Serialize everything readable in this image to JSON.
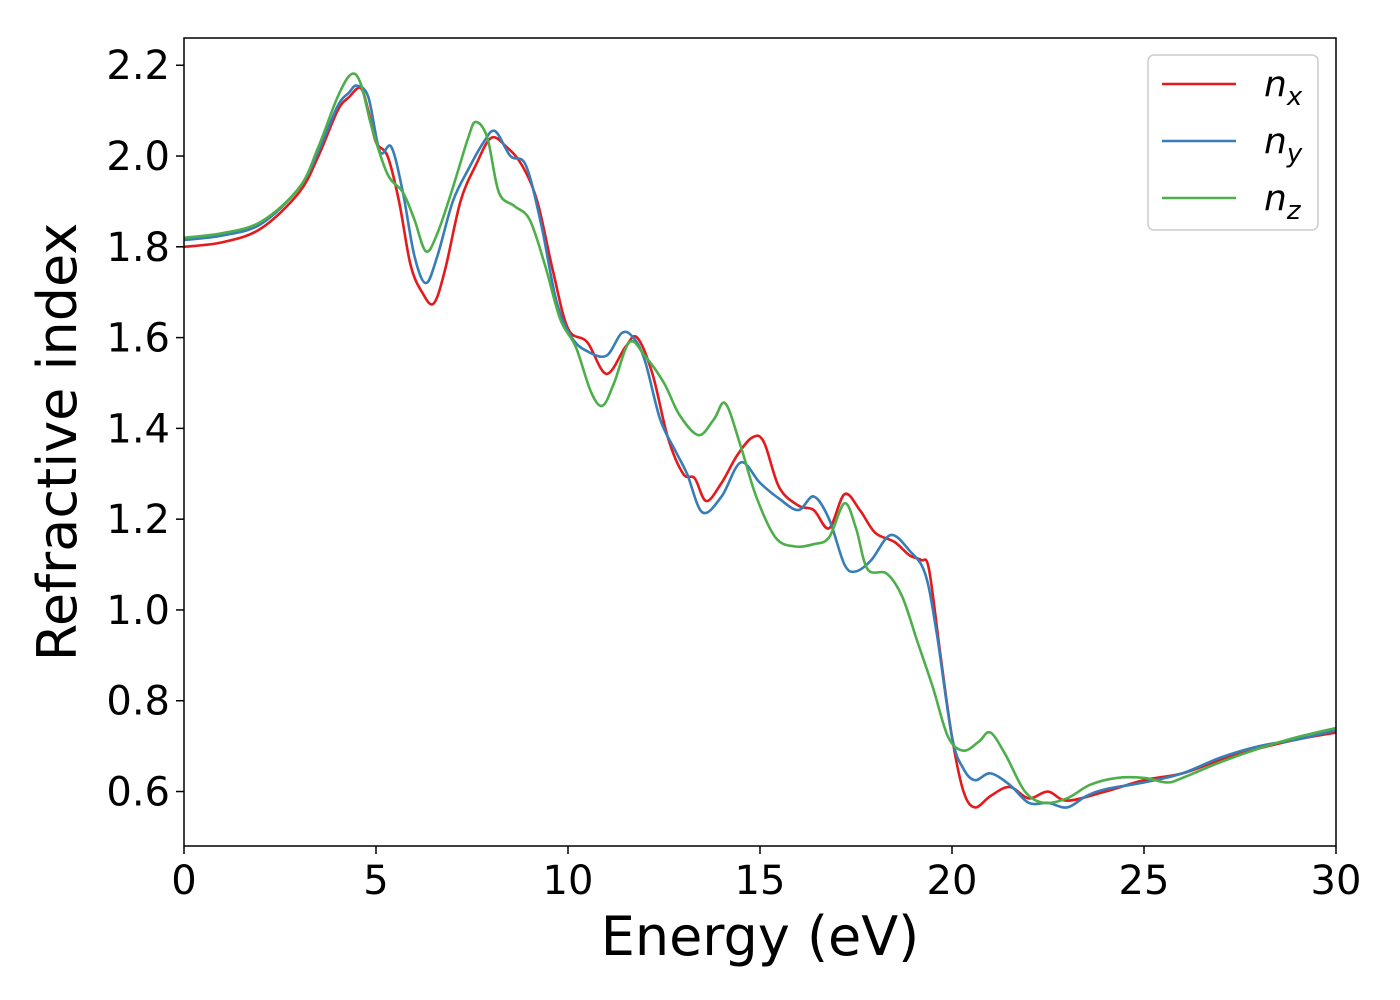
{
  "chart_data": {
    "type": "line",
    "title": "",
    "xlabel": "Energy (eV)",
    "ylabel": "Refractive index",
    "xlim": [
      0,
      30
    ],
    "ylim": [
      0.48,
      2.26
    ],
    "xticks": [
      0,
      5,
      10,
      15,
      20,
      25,
      30
    ],
    "xtick_labels": [
      "0",
      "5",
      "10",
      "15",
      "20",
      "25",
      "30"
    ],
    "yticks": [
      0.6,
      0.8,
      1.0,
      1.2,
      1.4,
      1.6,
      1.8,
      2.0,
      2.2
    ],
    "ytick_labels": [
      "0.6",
      "0.8",
      "1.0",
      "1.2",
      "1.4",
      "1.6",
      "1.8",
      "2.0",
      "2.2"
    ],
    "grid": false,
    "legend": "top-right",
    "series": [
      {
        "name": "n",
        "subscript": "x",
        "color": "#e41a1c",
        "points": [
          [
            0,
            1.8
          ],
          [
            1,
            1.81
          ],
          [
            2,
            1.84
          ],
          [
            3,
            1.92
          ],
          [
            3.5,
            2.0
          ],
          [
            4,
            2.1
          ],
          [
            4.3,
            2.13
          ],
          [
            4.6,
            2.15
          ],
          [
            4.8,
            2.1
          ],
          [
            5.0,
            2.03
          ],
          [
            5.3,
            2.0
          ],
          [
            5.6,
            1.9
          ],
          [
            5.9,
            1.76
          ],
          [
            6.2,
            1.7
          ],
          [
            6.5,
            1.675
          ],
          [
            6.8,
            1.75
          ],
          [
            7.2,
            1.9
          ],
          [
            7.6,
            1.98
          ],
          [
            8.0,
            2.04
          ],
          [
            8.4,
            2.02
          ],
          [
            8.8,
            1.98
          ],
          [
            9.2,
            1.9
          ],
          [
            9.6,
            1.75
          ],
          [
            10.0,
            1.62
          ],
          [
            10.5,
            1.59
          ],
          [
            11.0,
            1.52
          ],
          [
            11.5,
            1.58
          ],
          [
            11.8,
            1.6
          ],
          [
            12.2,
            1.52
          ],
          [
            12.6,
            1.38
          ],
          [
            13.0,
            1.3
          ],
          [
            13.3,
            1.29
          ],
          [
            13.6,
            1.24
          ],
          [
            14.0,
            1.28
          ],
          [
            14.4,
            1.34
          ],
          [
            14.8,
            1.38
          ],
          [
            15.1,
            1.37
          ],
          [
            15.5,
            1.27
          ],
          [
            16.0,
            1.23
          ],
          [
            16.4,
            1.22
          ],
          [
            16.8,
            1.18
          ],
          [
            17.2,
            1.255
          ],
          [
            17.6,
            1.22
          ],
          [
            18.0,
            1.17
          ],
          [
            18.5,
            1.15
          ],
          [
            18.9,
            1.12
          ],
          [
            19.2,
            1.11
          ],
          [
            19.4,
            1.09
          ],
          [
            19.7,
            0.9
          ],
          [
            20.0,
            0.72
          ],
          [
            20.3,
            0.6
          ],
          [
            20.6,
            0.565
          ],
          [
            21.0,
            0.59
          ],
          [
            21.5,
            0.61
          ],
          [
            22.0,
            0.585
          ],
          [
            22.5,
            0.6
          ],
          [
            23.0,
            0.58
          ],
          [
            24.0,
            0.6
          ],
          [
            25.0,
            0.625
          ],
          [
            26.0,
            0.64
          ],
          [
            27.0,
            0.67
          ],
          [
            28.0,
            0.695
          ],
          [
            29.0,
            0.715
          ],
          [
            30.0,
            0.73
          ]
        ]
      },
      {
        "name": "n",
        "subscript": "y",
        "color": "#377eb8",
        "points": [
          [
            0,
            1.815
          ],
          [
            1,
            1.825
          ],
          [
            2,
            1.85
          ],
          [
            3,
            1.93
          ],
          [
            3.5,
            2.01
          ],
          [
            4,
            2.11
          ],
          [
            4.3,
            2.14
          ],
          [
            4.5,
            2.155
          ],
          [
            4.8,
            2.13
          ],
          [
            5.1,
            2.01
          ],
          [
            5.4,
            2.02
          ],
          [
            5.7,
            1.92
          ],
          [
            6.0,
            1.78
          ],
          [
            6.3,
            1.72
          ],
          [
            6.6,
            1.78
          ],
          [
            7.0,
            1.9
          ],
          [
            7.4,
            1.97
          ],
          [
            7.8,
            2.03
          ],
          [
            8.1,
            2.055
          ],
          [
            8.5,
            2.0
          ],
          [
            8.9,
            1.98
          ],
          [
            9.3,
            1.85
          ],
          [
            9.7,
            1.68
          ],
          [
            10.1,
            1.6
          ],
          [
            10.5,
            1.57
          ],
          [
            11.0,
            1.56
          ],
          [
            11.4,
            1.61
          ],
          [
            11.7,
            1.6
          ],
          [
            12.0,
            1.55
          ],
          [
            12.4,
            1.42
          ],
          [
            12.8,
            1.35
          ],
          [
            13.1,
            1.3
          ],
          [
            13.5,
            1.215
          ],
          [
            14.0,
            1.25
          ],
          [
            14.5,
            1.325
          ],
          [
            15.0,
            1.28
          ],
          [
            15.5,
            1.245
          ],
          [
            16.0,
            1.22
          ],
          [
            16.4,
            1.25
          ],
          [
            16.8,
            1.2
          ],
          [
            17.2,
            1.1
          ],
          [
            17.5,
            1.085
          ],
          [
            17.9,
            1.11
          ],
          [
            18.4,
            1.165
          ],
          [
            18.9,
            1.13
          ],
          [
            19.3,
            1.08
          ],
          [
            19.6,
            0.95
          ],
          [
            20.0,
            0.72
          ],
          [
            20.3,
            0.65
          ],
          [
            20.6,
            0.625
          ],
          [
            21.0,
            0.64
          ],
          [
            21.5,
            0.615
          ],
          [
            22.0,
            0.575
          ],
          [
            22.5,
            0.575
          ],
          [
            23.0,
            0.565
          ],
          [
            23.5,
            0.59
          ],
          [
            24.0,
            0.605
          ],
          [
            25.0,
            0.62
          ],
          [
            26.0,
            0.64
          ],
          [
            27.0,
            0.675
          ],
          [
            28.0,
            0.7
          ],
          [
            29.0,
            0.715
          ],
          [
            30.0,
            0.735
          ]
        ]
      },
      {
        "name": "n",
        "subscript": "z",
        "color": "#4daf4a",
        "points": [
          [
            0,
            1.82
          ],
          [
            1,
            1.83
          ],
          [
            2,
            1.855
          ],
          [
            3,
            1.93
          ],
          [
            3.5,
            2.02
          ],
          [
            4,
            2.13
          ],
          [
            4.35,
            2.18
          ],
          [
            4.6,
            2.16
          ],
          [
            4.9,
            2.06
          ],
          [
            5.3,
            1.96
          ],
          [
            5.7,
            1.92
          ],
          [
            6.0,
            1.86
          ],
          [
            6.3,
            1.79
          ],
          [
            6.6,
            1.83
          ],
          [
            7.0,
            1.93
          ],
          [
            7.4,
            2.04
          ],
          [
            7.6,
            2.075
          ],
          [
            7.9,
            2.04
          ],
          [
            8.2,
            1.92
          ],
          [
            8.6,
            1.89
          ],
          [
            9.0,
            1.86
          ],
          [
            9.4,
            1.76
          ],
          [
            9.8,
            1.64
          ],
          [
            10.2,
            1.58
          ],
          [
            10.6,
            1.48
          ],
          [
            10.9,
            1.45
          ],
          [
            11.2,
            1.5
          ],
          [
            11.6,
            1.59
          ],
          [
            12.0,
            1.56
          ],
          [
            12.5,
            1.5
          ],
          [
            12.9,
            1.43
          ],
          [
            13.4,
            1.385
          ],
          [
            13.8,
            1.42
          ],
          [
            14.1,
            1.455
          ],
          [
            14.5,
            1.36
          ],
          [
            14.9,
            1.25
          ],
          [
            15.4,
            1.16
          ],
          [
            15.9,
            1.14
          ],
          [
            16.4,
            1.145
          ],
          [
            16.8,
            1.16
          ],
          [
            17.2,
            1.235
          ],
          [
            17.5,
            1.18
          ],
          [
            17.8,
            1.09
          ],
          [
            18.3,
            1.08
          ],
          [
            18.7,
            1.03
          ],
          [
            19.1,
            0.93
          ],
          [
            19.5,
            0.83
          ],
          [
            19.9,
            0.72
          ],
          [
            20.3,
            0.69
          ],
          [
            20.7,
            0.71
          ],
          [
            21.0,
            0.73
          ],
          [
            21.4,
            0.68
          ],
          [
            21.9,
            0.6
          ],
          [
            22.4,
            0.575
          ],
          [
            23.0,
            0.585
          ],
          [
            23.6,
            0.615
          ],
          [
            24.3,
            0.63
          ],
          [
            25.0,
            0.63
          ],
          [
            25.6,
            0.62
          ],
          [
            26.0,
            0.63
          ],
          [
            27.0,
            0.665
          ],
          [
            28.0,
            0.695
          ],
          [
            29.0,
            0.72
          ],
          [
            30.0,
            0.74
          ]
        ]
      }
    ]
  }
}
